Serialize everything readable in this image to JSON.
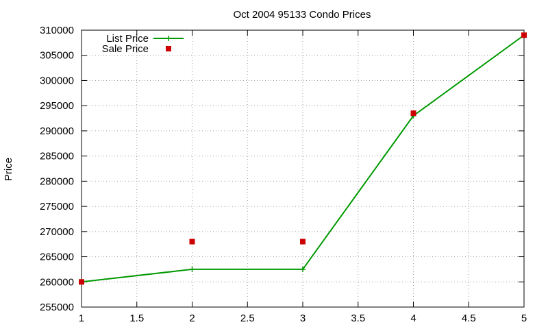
{
  "chart_data": {
    "type": "line",
    "title": "Oct 2004 95133 Condo Prices",
    "xlabel": "",
    "ylabel": "Price",
    "xlim": [
      1,
      5
    ],
    "ylim": [
      255000,
      310000
    ],
    "x_ticks": [
      "1",
      "1.5",
      "2",
      "2.5",
      "3",
      "3.5",
      "4",
      "4.5",
      "5"
    ],
    "y_ticks": [
      "255000",
      "260000",
      "265000",
      "270000",
      "275000",
      "280000",
      "285000",
      "290000",
      "295000",
      "300000",
      "305000",
      "310000"
    ],
    "grid": true,
    "legend_position": "top-left",
    "series": [
      {
        "name": "List Price",
        "style": "line-with-plus-markers",
        "color": "#009900",
        "x": [
          1,
          2,
          3,
          4,
          5
        ],
        "y": [
          260000,
          262500,
          262500,
          293000,
          309000
        ]
      },
      {
        "name": "Sale Price",
        "style": "square-markers",
        "color": "#cc0000",
        "x": [
          1,
          2,
          3,
          4,
          5
        ],
        "y": [
          260000,
          268000,
          268000,
          293500,
          309000
        ]
      }
    ]
  }
}
